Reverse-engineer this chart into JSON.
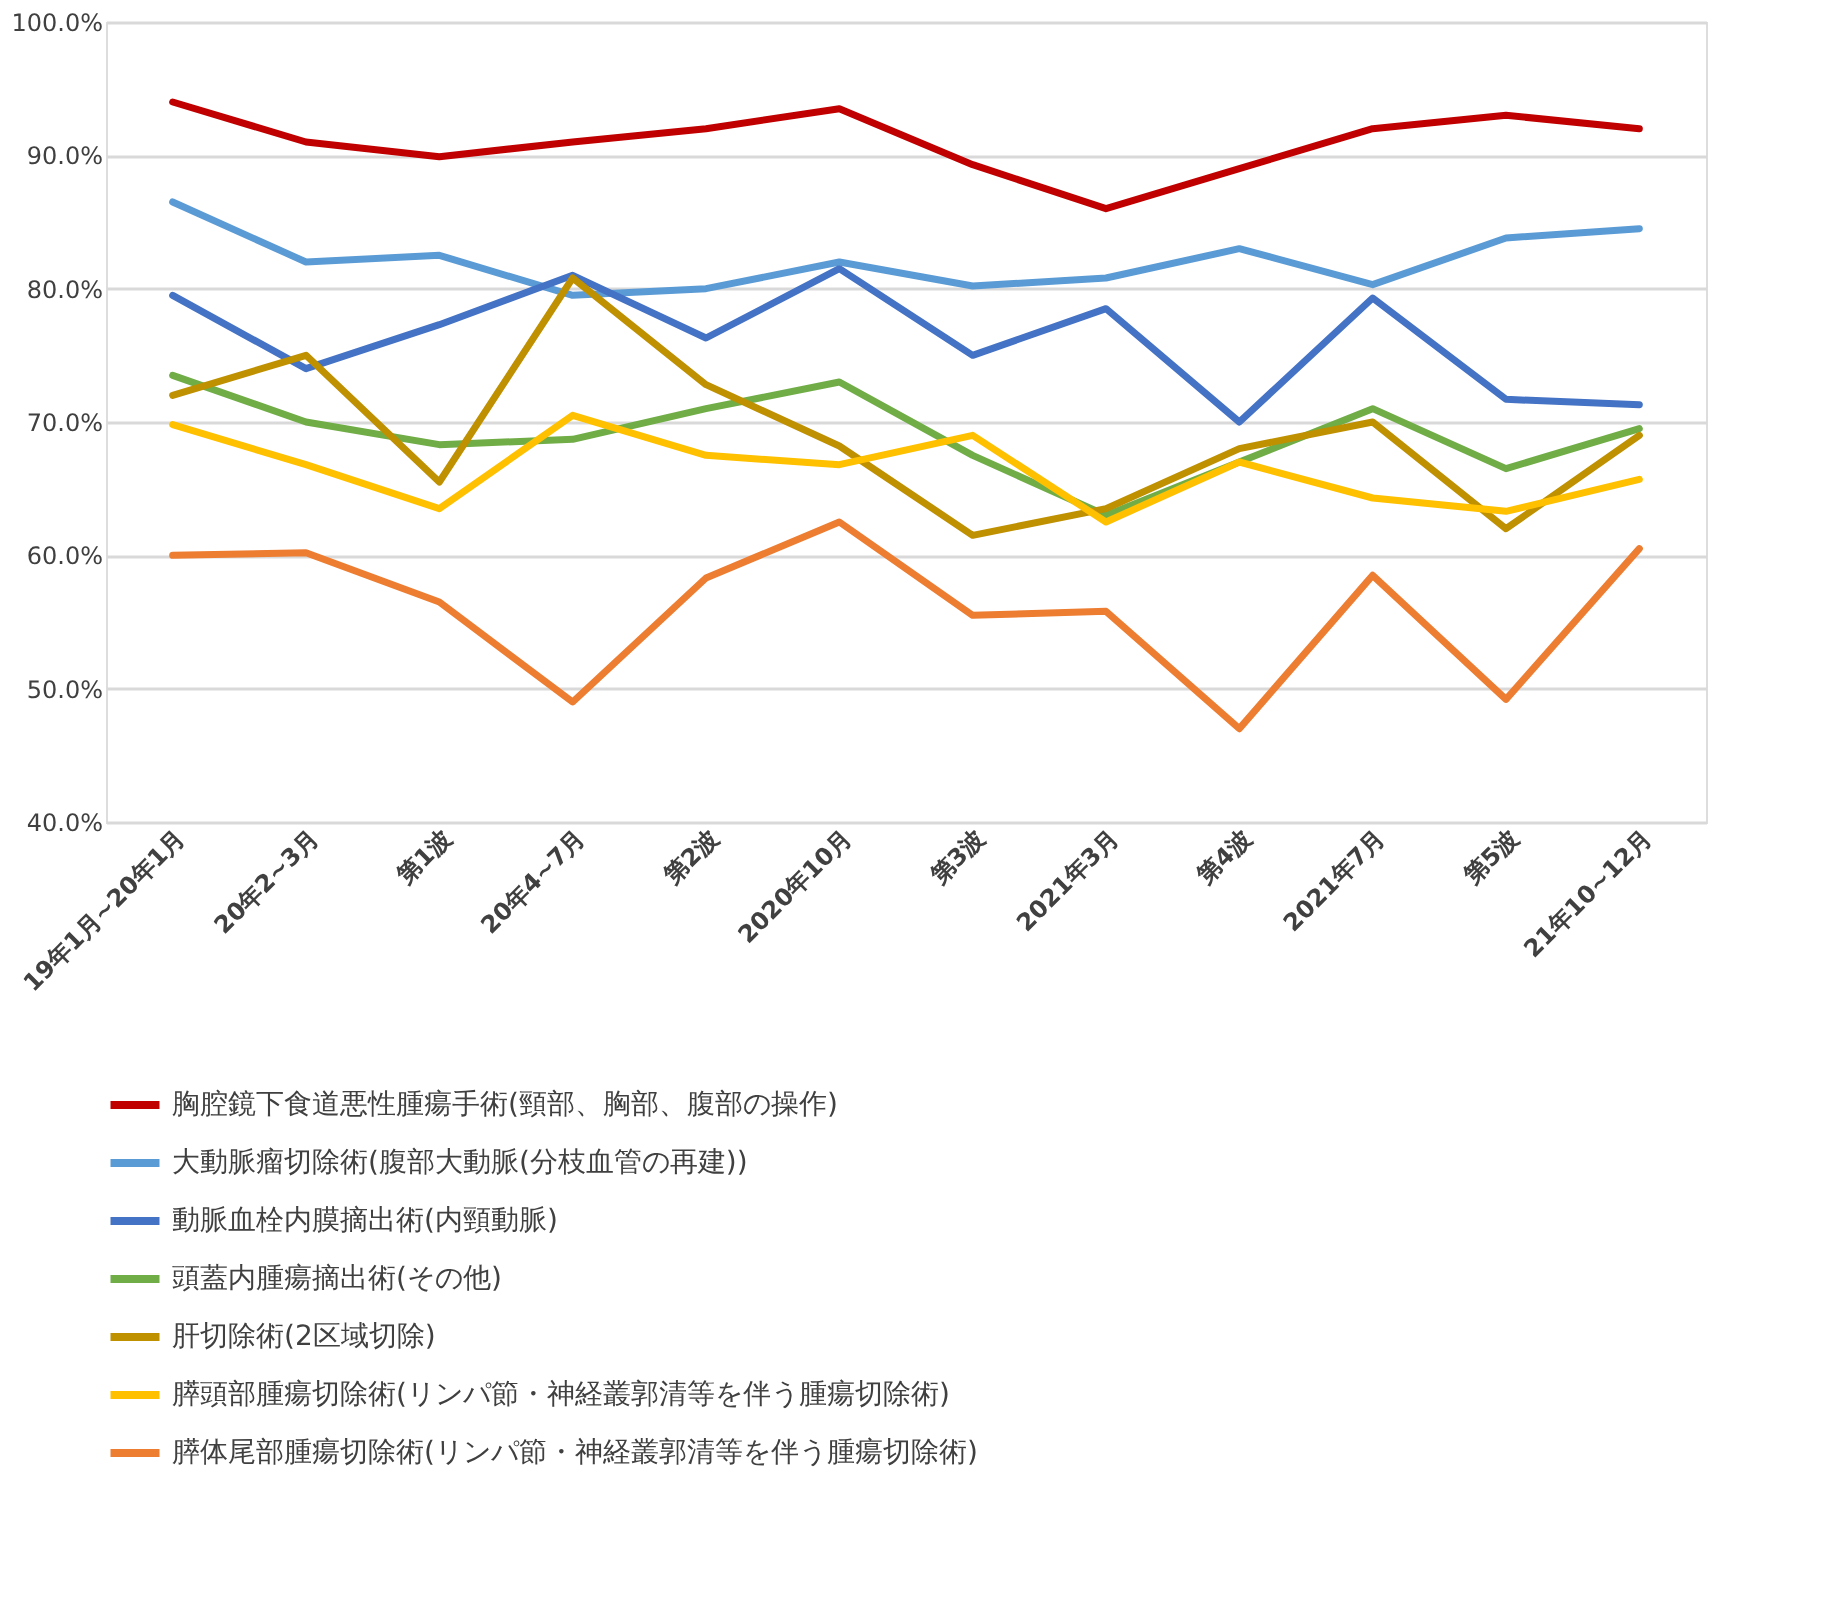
{
  "chart_data": {
    "type": "line",
    "categories": [
      "19年1月~20年1月",
      "20年2~3月",
      "第1波",
      "20年4~7月",
      "第2波",
      "2020年10月",
      "第3波",
      "2021年3月",
      "第4波",
      "2021年7月",
      "第5波",
      "21年10~12月"
    ],
    "ylim": [
      40,
      100
    ],
    "yticks": [
      {
        "value": 40,
        "label": "40.0%"
      },
      {
        "value": 50,
        "label": "50.0%"
      },
      {
        "value": 60,
        "label": "60.0%"
      },
      {
        "value": 70,
        "label": "70.0%"
      },
      {
        "value": 80,
        "label": "80.0%"
      },
      {
        "value": 90,
        "label": "90.0%"
      },
      {
        "value": 100,
        "label": "100.0%"
      }
    ],
    "grid": "y",
    "legend": "bottom",
    "marker": "none",
    "line_style": "solid",
    "series": [
      {
        "name": "胸腔鏡下食道悪性腫瘍手術(頸部、胸部、腹部の操作)",
        "color": "#c00000",
        "values": [
          94,
          91,
          89.9,
          91,
          92,
          93.5,
          89.3,
          86,
          89,
          92,
          93,
          92
        ]
      },
      {
        "name": "大動脈瘤切除術(腹部大動脈(分枝血管の再建))",
        "color": "#5b9bd5",
        "values": [
          86.5,
          82,
          82.5,
          79.5,
          80,
          82,
          80.2,
          80.8,
          83,
          80.3,
          83.8,
          84.5
        ]
      },
      {
        "name": "動脈血栓内膜摘出術(内頸動脈)",
        "color": "#4472c4",
        "values": [
          79.5,
          74,
          77.3,
          81,
          76.3,
          81.5,
          75,
          78.5,
          70,
          79.3,
          71.7,
          71.3
        ]
      },
      {
        "name": "頭蓋内腫瘍摘出術(その他)",
        "color": "#70ad47",
        "values": [
          73.5,
          70,
          68.3,
          68.7,
          71,
          73,
          67.5,
          63,
          67,
          71,
          66.5,
          69.5
        ]
      },
      {
        "name": "肝切除術(2区域切除)",
        "color": "#bf9000",
        "values": [
          72,
          75,
          65.5,
          80.8,
          72.8,
          68.2,
          61.5,
          63.5,
          68,
          70,
          62,
          69
        ]
      },
      {
        "name": "膵頭部腫瘍切除術(リンパ節・神経叢郭清等を伴う腫瘍切除術)",
        "color": "#ffc000",
        "values": [
          69.8,
          66.8,
          63.5,
          70.5,
          67.5,
          66.8,
          69,
          62.5,
          67,
          64.3,
          63.3,
          65.7
        ]
      },
      {
        "name": "膵体尾部腫瘍切除術(リンパ節・神経叢郭清等を伴う腫瘍切除術)",
        "color": "#ed7d31",
        "values": [
          60,
          60.2,
          56.5,
          49,
          58.3,
          62.5,
          55.5,
          55.8,
          47,
          58.5,
          49.2,
          60.5
        ]
      }
    ]
  }
}
